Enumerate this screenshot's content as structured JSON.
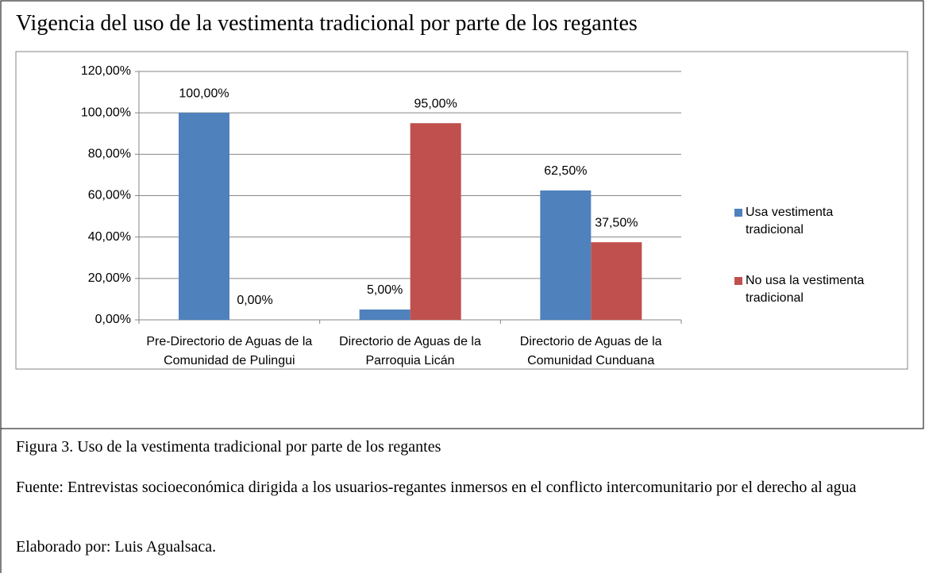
{
  "chart_data": {
    "type": "bar",
    "title": "Vigencia del uso de la vestimenta tradicional por parte de los regantes",
    "categories": [
      "Pre-Directorio de Aguas de la Comunidad de Pulingui",
      "Directorio de Aguas de la Parroquia Licán",
      "Directorio de Aguas de la Comunidad Cunduana"
    ],
    "series": [
      {
        "name": "Usa vestimenta tradicional",
        "color": "#4f81bd",
        "values": [
          100,
          5,
          62.5
        ],
        "value_labels": [
          "100,00%",
          "5,00%",
          "62,50%"
        ]
      },
      {
        "name": "No usa la vestimenta tradicional",
        "color": "#c0504d",
        "values": [
          0,
          95,
          37.5
        ],
        "value_labels": [
          "0,00%",
          "95,00%",
          "37,50%"
        ]
      }
    ],
    "ylim": [
      0,
      120
    ],
    "yticks": [
      {
        "value": 0,
        "label": "0,00%"
      },
      {
        "value": 20,
        "label": "20,00%"
      },
      {
        "value": 40,
        "label": "40,00%"
      },
      {
        "value": 60,
        "label": "60,00%"
      },
      {
        "value": 80,
        "label": "80,00%"
      },
      {
        "value": 100,
        "label": "100,00%"
      },
      {
        "value": 120,
        "label": "120,00%"
      }
    ],
    "grid": true,
    "legend": "right"
  },
  "caption": "Figura 3. Uso de la vestimenta tradicional por parte de los regantes",
  "source": "Fuente: Entrevistas socioeconómica dirigida a los usuarios-regantes inmersos en el conflicto intercomunitario por el derecho al agua",
  "author": "Elaborado por: Luis Agualsaca."
}
